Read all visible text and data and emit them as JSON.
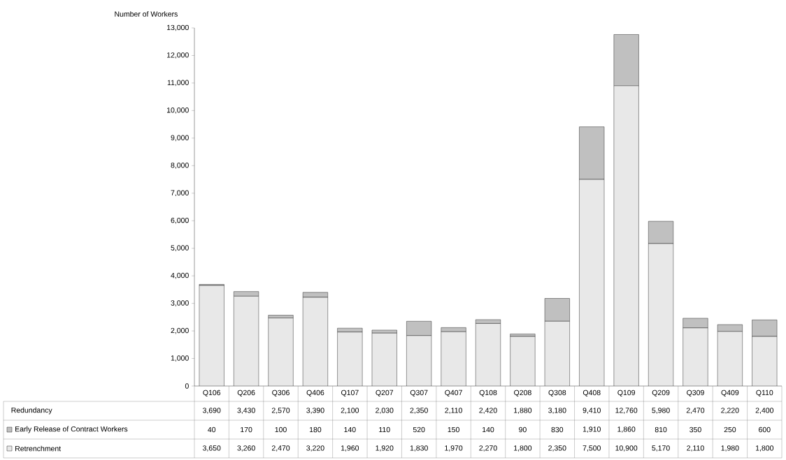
{
  "chart_data": {
    "type": "bar",
    "stacked": true,
    "ylabel": "Number of Workers",
    "categories": [
      "Q106",
      "Q206",
      "Q306",
      "Q406",
      "Q107",
      "Q207",
      "Q307",
      "Q407",
      "Q108",
      "Q208",
      "Q308",
      "Q408",
      "Q109",
      "Q209",
      "Q309",
      "Q409",
      "Q110"
    ],
    "series": [
      {
        "name": "Retrenchment",
        "color": "#e8e8e8",
        "values": [
          3650,
          3260,
          2470,
          3220,
          1960,
          1920,
          1830,
          1970,
          2270,
          1800,
          2350,
          7500,
          10900,
          5170,
          2110,
          1980,
          1800
        ],
        "value_labels": [
          "3,650",
          "3,260",
          "2,470",
          "3,220",
          "1,960",
          "1,920",
          "1,830",
          "1,970",
          "2,270",
          "1,800",
          "2,350",
          "7,500",
          "10,900",
          "5,170",
          "2,110",
          "1,980",
          "1,800"
        ]
      },
      {
        "name": "Early Release of Contract Workers",
        "color": "#c0c0c0",
        "values": [
          40,
          170,
          100,
          180,
          140,
          110,
          520,
          150,
          140,
          90,
          830,
          1910,
          1860,
          810,
          350,
          250,
          600
        ],
        "value_labels": [
          "40",
          "170",
          "100",
          "180",
          "140",
          "110",
          "520",
          "150",
          "140",
          "90",
          "830",
          "1,910",
          "1,860",
          "810",
          "350",
          "250",
          "600"
        ]
      }
    ],
    "annotations": [
      "Redundancy",
      "3,690",
      "3,430",
      "2,570",
      "3,390",
      "2,100",
      "2,030",
      "2,350",
      "2,110",
      "2,420",
      "1,880",
      "3,180",
      "9,410",
      "12,760",
      "5,980",
      "2,470",
      "2,220",
      "2,400"
    ],
    "legend": "bottom",
    "ylim": [
      0,
      13000
    ],
    "yticks": [
      {
        "value": 0,
        "label": "0"
      },
      {
        "value": 1000,
        "label": "1,000"
      },
      {
        "value": 2000,
        "label": "2,000"
      },
      {
        "value": 3000,
        "label": "3,000"
      },
      {
        "value": 4000,
        "label": "4,000"
      },
      {
        "value": 5000,
        "label": "5,000"
      },
      {
        "value": 6000,
        "label": "6,000"
      },
      {
        "value": 7000,
        "label": "7,000"
      },
      {
        "value": 8000,
        "label": "8,000"
      },
      {
        "value": 9000,
        "label": "9,000"
      },
      {
        "value": 10000,
        "label": "10,000"
      },
      {
        "value": 11000,
        "label": "11,000"
      },
      {
        "value": 12000,
        "label": "12,000"
      },
      {
        "value": 13000,
        "label": "13,000"
      }
    ]
  }
}
